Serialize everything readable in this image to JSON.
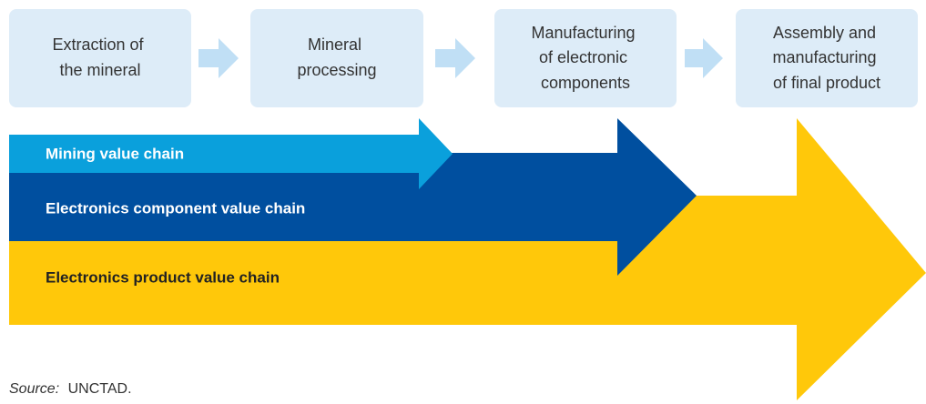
{
  "stages": [
    {
      "lines": [
        "Extraction of",
        "the mineral"
      ]
    },
    {
      "lines": [
        "Mineral",
        "processing"
      ]
    },
    {
      "lines": [
        "Manufacturing",
        "of electronic",
        "components"
      ]
    },
    {
      "lines": [
        "Assembly and",
        "manufacturing",
        "of final product"
      ]
    }
  ],
  "chains": [
    {
      "label": "Mining value chain"
    },
    {
      "label": "Electronics component value chain"
    },
    {
      "label": "Electronics product value chain"
    }
  ],
  "source": {
    "label": "Source:",
    "text": "UNCTAD."
  }
}
